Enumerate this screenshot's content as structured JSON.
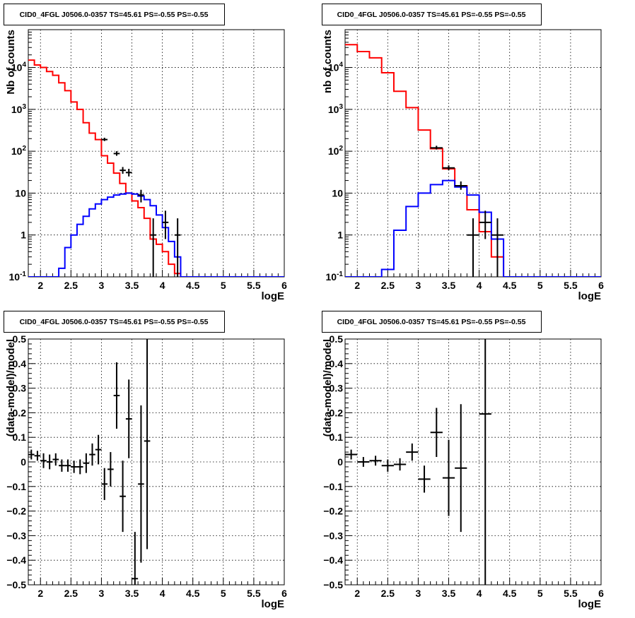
{
  "chart_data": [
    {
      "type": "line",
      "title": "CID0_4FGL J0506.0-0357 TS=45.61 PS=-0.55 PS=-0.55",
      "xlabel": "logE",
      "ylabel": "Nb of counts",
      "xlim": [
        1.8,
        6.0
      ],
      "ylim": [
        0.1,
        80000
      ],
      "yscale": "log",
      "grid": true,
      "xticks": [
        "2",
        "2.5",
        "3",
        "3.5",
        "4",
        "4.5",
        "5",
        "5.5",
        "6"
      ],
      "yticks": [
        "10^-1",
        "1",
        "10",
        "10^2",
        "10^3",
        "10^4"
      ],
      "bin_edges": [
        1.8,
        1.9,
        2.0,
        2.1,
        2.2,
        2.3,
        2.4,
        2.5,
        2.6,
        2.7,
        2.8,
        2.9,
        3.0,
        3.1,
        3.2,
        3.3,
        3.4,
        3.5,
        3.6,
        3.7,
        3.8,
        3.9,
        4.0,
        4.1,
        4.2,
        4.3,
        4.4,
        4.5,
        4.6,
        4.7,
        4.8,
        4.9,
        5.0,
        5.1,
        5.2,
        5.3,
        5.4,
        5.5,
        5.6,
        5.7,
        5.8,
        5.9,
        6.0
      ],
      "series": [
        {
          "color": "#ff0000",
          "style": "histogram",
          "values": [
            15000,
            11500,
            10000,
            8000,
            6500,
            4300,
            2800,
            1500,
            1000,
            480,
            270,
            190,
            78,
            52,
            30,
            17,
            10,
            6.5,
            4.5,
            2.5,
            0.8,
            0.6,
            0.4,
            0.2,
            0.12,
            0.1,
            0.1,
            0.1,
            0.1,
            0.1,
            0.1,
            0.1,
            0.1,
            0.1,
            0.1,
            0.1,
            0.1,
            0.1,
            0.1,
            0.1,
            0.1,
            0.1
          ]
        },
        {
          "color": "#0000ff",
          "style": "histogram",
          "values": [
            0.1,
            0.1,
            0.1,
            0.1,
            0.1,
            0.16,
            0.5,
            1.0,
            1.8,
            2.8,
            4.2,
            5.5,
            7.0,
            8.0,
            9.0,
            9.5,
            10.0,
            9.5,
            8.5,
            7.0,
            5.0,
            3.0,
            1.5,
            0.7,
            0.3,
            0.1,
            0.1,
            0.1,
            0.1,
            0.1,
            0.1,
            0.1,
            0.1,
            0.1,
            0.1,
            0.1,
            0.1,
            0.1,
            0.1,
            0.1,
            0.1,
            0.1
          ]
        },
        {
          "color": "#000000",
          "style": "points",
          "points": [
            [
              3.05,
              190,
              175,
              210
            ],
            [
              3.25,
              88,
              78,
              100
            ],
            [
              3.35,
              35,
              29,
              42
            ],
            [
              3.45,
              31,
              25,
              38
            ],
            [
              3.65,
              9,
              6,
              12
            ],
            [
              3.85,
              1,
              0.1,
              2.5
            ],
            [
              4.05,
              2,
              0.8,
              3.8
            ],
            [
              4.25,
              1,
              0.1,
              2.5
            ]
          ]
        }
      ]
    },
    {
      "type": "line",
      "title": "CID0_4FGL J0506.0-0357 TS=45.61 PS=-0.55 PS=-0.55",
      "xlabel": "logE",
      "ylabel": "nb of counts",
      "xlim": [
        1.8,
        6.0
      ],
      "ylim": [
        0.1,
        80000
      ],
      "yscale": "log",
      "grid": true,
      "xticks": [
        "2",
        "2.5",
        "3",
        "3.5",
        "4",
        "4.5",
        "5",
        "5.5",
        "6"
      ],
      "yticks": [
        "10^-1",
        "1",
        "10",
        "10^2",
        "10^3",
        "10^4"
      ],
      "bin_edges": [
        1.8,
        2.0,
        2.2,
        2.4,
        2.6,
        2.8,
        3.0,
        3.2,
        3.4,
        3.6,
        3.8,
        4.0,
        4.2,
        4.4,
        4.6,
        4.8,
        5.0,
        5.2,
        5.4,
        5.6,
        5.8,
        6.0
      ],
      "series": [
        {
          "color": "#ff0000",
          "style": "histogram",
          "values": [
            35000,
            24000,
            17000,
            7500,
            2700,
            1100,
            320,
            115,
            38,
            15,
            4,
            1.2,
            0.3,
            0.1,
            0.1,
            0.1,
            0.1,
            0.1,
            0.1,
            0.1,
            0.1
          ]
        },
        {
          "color": "#0000ff",
          "style": "histogram",
          "values": [
            0.1,
            0.1,
            0.1,
            0.15,
            1.3,
            4.8,
            10,
            16,
            20,
            14,
            9,
            3.5,
            0.8,
            0.1,
            0.1,
            0.1,
            0.1,
            0.1,
            0.1,
            0.1,
            0.1
          ]
        },
        {
          "color": "#000000",
          "style": "points",
          "points": [
            [
              3.3,
              120,
              110,
              135
            ],
            [
              3.5,
              40,
              35,
              46
            ],
            [
              3.7,
              15,
              12,
              19
            ],
            [
              3.9,
              1,
              0.1,
              2.5
            ],
            [
              4.1,
              2,
              0.8,
              3.8
            ],
            [
              4.3,
              1,
              0.1,
              2.5
            ]
          ]
        }
      ]
    },
    {
      "type": "scatter",
      "title": "CID0_4FGL J0506.0-0357 TS=45.61 PS=-0.55 PS=-0.55",
      "xlabel": "logE",
      "ylabel": "(data-model)/model",
      "xlim": [
        1.8,
        6.0
      ],
      "ylim": [
        -0.5,
        0.5
      ],
      "grid": true,
      "xticks": [
        "2",
        "2.5",
        "3",
        "3.5",
        "4",
        "4.5",
        "5",
        "5.5",
        "6"
      ],
      "yticks": [
        "−0.5",
        "−0.4",
        "−0.3",
        "−0.2",
        "−0.1",
        "0",
        "0.1",
        "0.2",
        "0.3",
        "0.4",
        "0.5"
      ],
      "xerr": 0.05,
      "points": [
        [
          1.85,
          0.03,
          0.02
        ],
        [
          1.95,
          0.025,
          0.02
        ],
        [
          2.05,
          0.005,
          0.03
        ],
        [
          2.15,
          0.0,
          0.03
        ],
        [
          2.25,
          0.01,
          0.025
        ],
        [
          2.35,
          -0.015,
          0.025
        ],
        [
          2.45,
          -0.015,
          0.025
        ],
        [
          2.55,
          -0.02,
          0.025
        ],
        [
          2.65,
          -0.02,
          0.03
        ],
        [
          2.75,
          -0.005,
          0.04
        ],
        [
          2.85,
          0.03,
          0.045
        ],
        [
          2.95,
          0.05,
          0.06
        ],
        [
          3.05,
          -0.09,
          0.065
        ],
        [
          3.15,
          -0.03,
          0.07
        ],
        [
          3.25,
          0.27,
          0.135
        ],
        [
          3.35,
          -0.14,
          0.145
        ],
        [
          3.45,
          0.175,
          0.16
        ],
        [
          3.55,
          -0.475,
          0.19
        ],
        [
          3.65,
          -0.09,
          0.32
        ],
        [
          3.75,
          0.085,
          0.44
        ]
      ]
    },
    {
      "type": "scatter",
      "title": "CID0_4FGL J0506.0-0357 TS=45.61 PS=-0.55 PS=-0.55",
      "xlabel": "logE",
      "ylabel": "(data-model)/model",
      "xlim": [
        1.8,
        6.0
      ],
      "ylim": [
        -0.5,
        0.5
      ],
      "grid": true,
      "xticks": [
        "2",
        "2.5",
        "3",
        "3.5",
        "4",
        "4.5",
        "5",
        "5.5",
        "6"
      ],
      "yticks": [
        "−0.5",
        "−0.4",
        "−0.3",
        "−0.2",
        "−0.1",
        "0",
        "0.1",
        "0.2",
        "0.3",
        "0.4",
        "0.5"
      ],
      "xerr": 0.1,
      "points": [
        [
          1.9,
          0.03,
          0.02
        ],
        [
          2.1,
          0.0,
          0.02
        ],
        [
          2.3,
          0.005,
          0.02
        ],
        [
          2.5,
          -0.015,
          0.025
        ],
        [
          2.7,
          -0.01,
          0.025
        ],
        [
          2.9,
          0.04,
          0.035
        ],
        [
          3.1,
          -0.07,
          0.055
        ],
        [
          3.3,
          0.12,
          0.1
        ],
        [
          3.5,
          -0.065,
          0.155
        ],
        [
          3.7,
          -0.025,
          0.26
        ],
        [
          4.1,
          0.195,
          0.95
        ]
      ]
    }
  ]
}
